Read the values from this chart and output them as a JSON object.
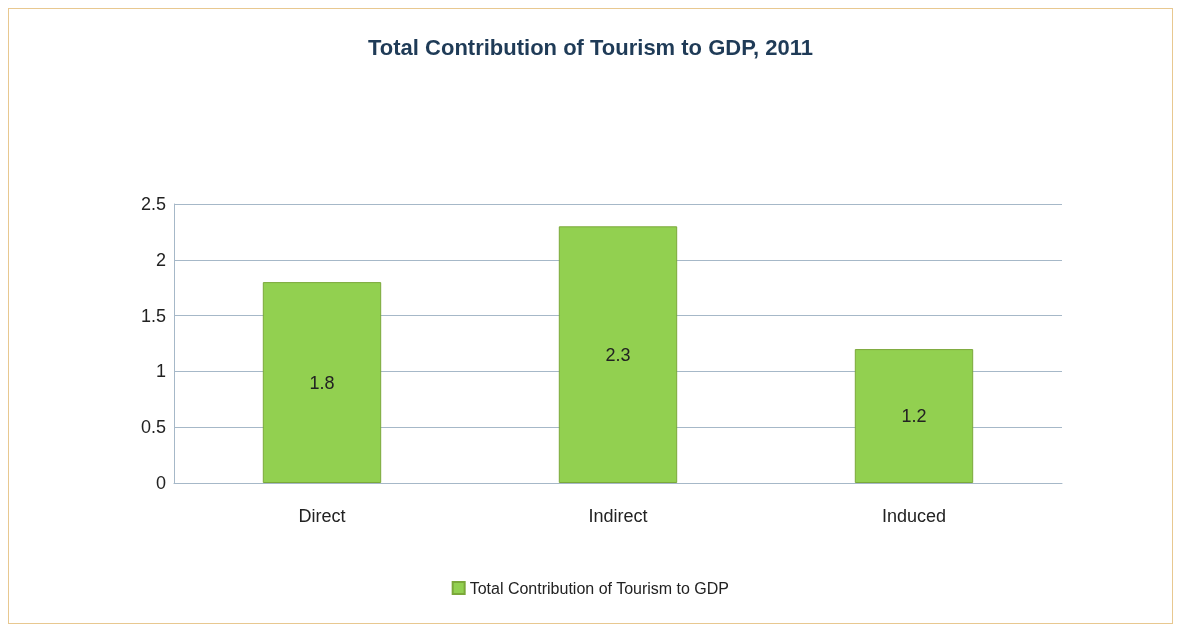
{
  "chart_data": {
    "type": "bar",
    "title": "Total Contribution of Tourism to GDP, 2011",
    "categories": [
      "Direct",
      "Indirect",
      "Induced"
    ],
    "series": [
      {
        "name": "Total Contribution of Tourism to GDP",
        "color": "#92d050",
        "values": [
          1.8,
          2.3,
          1.2
        ]
      }
    ],
    "ylim": [
      0,
      2.5
    ],
    "yticks": [
      0,
      0.5,
      1,
      1.5,
      2,
      2.5
    ],
    "grid": "y",
    "legend": "bottom",
    "data_labels": true
  }
}
